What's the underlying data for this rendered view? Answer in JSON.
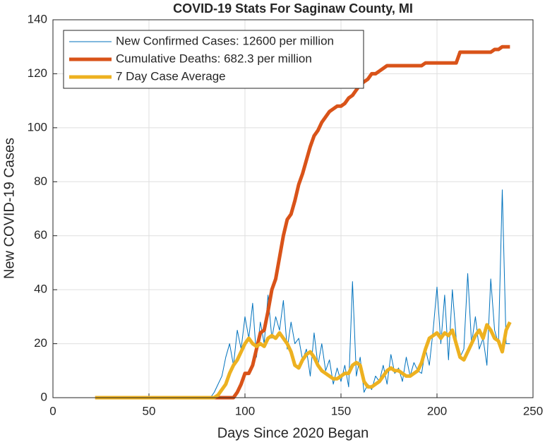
{
  "chart_data": {
    "type": "line",
    "title": "COVID-19 Stats For Saginaw County, MI",
    "xlabel": "Days Since 2020 Began",
    "ylabel": "New COVID-19 Cases",
    "xlim": [
      0,
      250
    ],
    "xticks": [
      0,
      50,
      100,
      150,
      200,
      250
    ],
    "ylim": [
      0,
      140
    ],
    "yticks": [
      0,
      20,
      40,
      60,
      80,
      100,
      120,
      140
    ],
    "grid": true,
    "legend": "upper-left",
    "x": [
      22,
      24,
      26,
      28,
      30,
      32,
      34,
      36,
      38,
      40,
      42,
      44,
      46,
      48,
      50,
      52,
      54,
      56,
      58,
      60,
      62,
      64,
      66,
      68,
      70,
      72,
      74,
      76,
      78,
      80,
      82,
      84,
      86,
      88,
      90,
      92,
      94,
      96,
      98,
      100,
      102,
      104,
      106,
      108,
      110,
      112,
      114,
      116,
      118,
      120,
      122,
      124,
      126,
      128,
      130,
      132,
      134,
      136,
      138,
      140,
      142,
      144,
      146,
      148,
      150,
      152,
      154,
      156,
      158,
      160,
      162,
      164,
      166,
      168,
      170,
      172,
      174,
      176,
      178,
      180,
      182,
      184,
      186,
      188,
      190,
      192,
      194,
      196,
      198,
      200,
      202,
      204,
      206,
      208,
      210,
      212,
      214,
      216,
      218,
      220,
      222,
      224,
      226,
      228,
      230,
      232,
      234,
      236,
      238
    ],
    "series": [
      {
        "name": "New Confirmed Cases: 12600 per million",
        "color": "#0072BD",
        "width": 1,
        "values": [
          0,
          0,
          0,
          0,
          0,
          0,
          0,
          0,
          0,
          0,
          0,
          0,
          0,
          0,
          0,
          0,
          0,
          0,
          0,
          0,
          0,
          0,
          0,
          0,
          0,
          0,
          0,
          0,
          0,
          0,
          0,
          2,
          5,
          8,
          15,
          20,
          12,
          25,
          18,
          30,
          22,
          35,
          15,
          28,
          20,
          38,
          22,
          30,
          25,
          36,
          18,
          28,
          20,
          22,
          14,
          18,
          8,
          24,
          12,
          20,
          10,
          14,
          5,
          11,
          6,
          12,
          4,
          43,
          8,
          15,
          2,
          5,
          3,
          8,
          6,
          12,
          5,
          16,
          9,
          11,
          6,
          15,
          8,
          13,
          10,
          9,
          18,
          12,
          25,
          41,
          20,
          38,
          14,
          40,
          22,
          15,
          18,
          46,
          20,
          30,
          18,
          22,
          12,
          44,
          25,
          20,
          77,
          20,
          20
        ]
      },
      {
        "name": "Cumulative Deaths: 682.3 per million",
        "color": "#D95319",
        "width": 5,
        "values": [
          0,
          0,
          0,
          0,
          0,
          0,
          0,
          0,
          0,
          0,
          0,
          0,
          0,
          0,
          0,
          0,
          0,
          0,
          0,
          0,
          0,
          0,
          0,
          0,
          0,
          0,
          0,
          0,
          0,
          0,
          0,
          0,
          0,
          0,
          0,
          0,
          0,
          2,
          5,
          9,
          9,
          12,
          18,
          24,
          25,
          32,
          40,
          44,
          52,
          60,
          66,
          68,
          73,
          79,
          83,
          88,
          93,
          97,
          99,
          102,
          104,
          106,
          107,
          108,
          108,
          109,
          111,
          112,
          114,
          116,
          117,
          118,
          120,
          120,
          121,
          122,
          123,
          123,
          123,
          123,
          123,
          123,
          123,
          123,
          123,
          123,
          124,
          124,
          124,
          124,
          124,
          124,
          124,
          124,
          124,
          128,
          128,
          128,
          128,
          128,
          128,
          128,
          128,
          128,
          129,
          129,
          130,
          130,
          130
        ]
      },
      {
        "name": "7 Day Case Average",
        "color": "#EDB120",
        "width": 5,
        "values": [
          0,
          0,
          0,
          0,
          0,
          0,
          0,
          0,
          0,
          0,
          0,
          0,
          0,
          0,
          0,
          0,
          0,
          0,
          0,
          0,
          0,
          0,
          0,
          0,
          0,
          0,
          0,
          0,
          0,
          0,
          0,
          0,
          1,
          3,
          5,
          9,
          12,
          14,
          17,
          20,
          22,
          20,
          19,
          20,
          19,
          22,
          23,
          22,
          24,
          22,
          20,
          17,
          12,
          11,
          14,
          16,
          17,
          15,
          12,
          10,
          9,
          8,
          7,
          7,
          8,
          9,
          9,
          12,
          13,
          12,
          6,
          4,
          4,
          5,
          6,
          8,
          10,
          11,
          10,
          10,
          9,
          8,
          8,
          9,
          10,
          13,
          18,
          22,
          23,
          24,
          22,
          24,
          23,
          25,
          20,
          15,
          14,
          17,
          20,
          23,
          25,
          22,
          27,
          25,
          22,
          21,
          17,
          25,
          28
        ]
      }
    ]
  }
}
